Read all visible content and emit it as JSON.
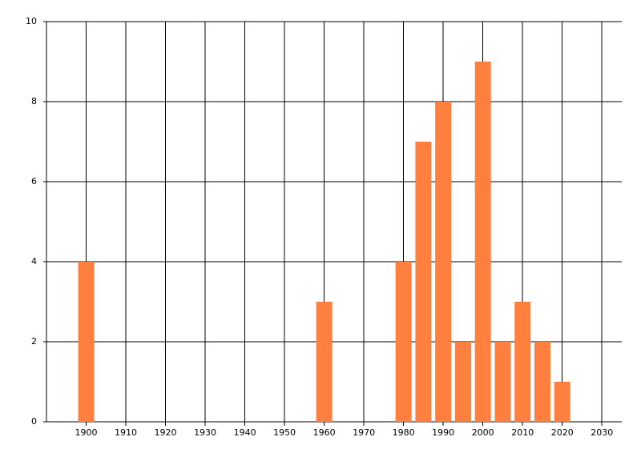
{
  "chart_data": {
    "type": "bar",
    "x": [
      1900,
      1960,
      1980,
      1985,
      1990,
      1995,
      2000,
      2005,
      2010,
      2015,
      2020
    ],
    "values": [
      4,
      3,
      4,
      7,
      8,
      2,
      9,
      2,
      3,
      2,
      1
    ],
    "color": "#ff7f3f",
    "xlim": [
      1890,
      2035
    ],
    "xticks": [
      1900,
      1910,
      1920,
      1930,
      1940,
      1950,
      1960,
      1970,
      1980,
      1990,
      2000,
      2010,
      2020,
      2030
    ],
    "ylim": [
      0,
      10
    ],
    "yticks": [
      0,
      2,
      4,
      6,
      8,
      10
    ],
    "grid": true
  }
}
